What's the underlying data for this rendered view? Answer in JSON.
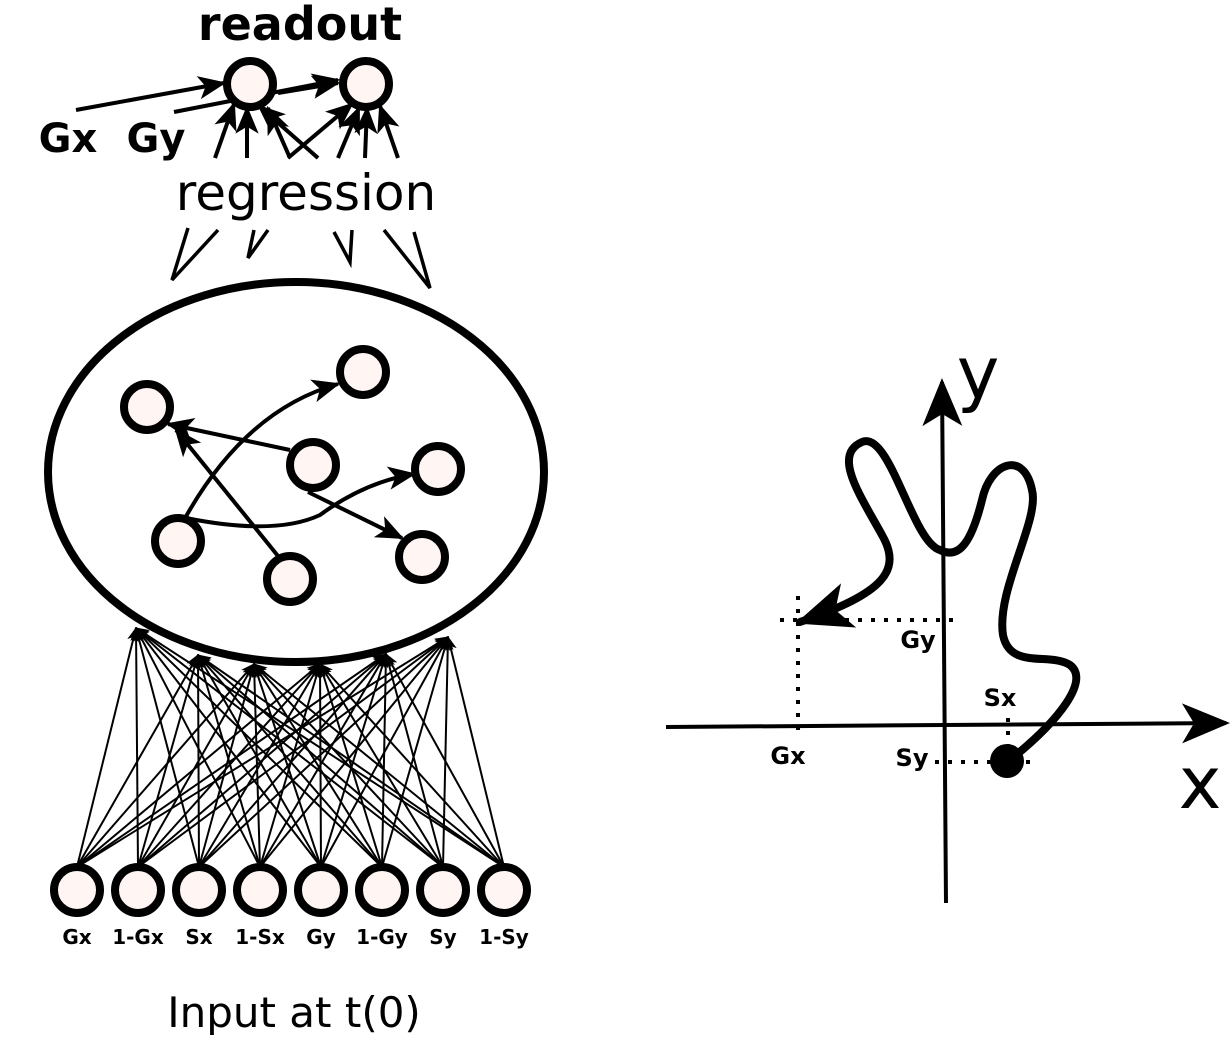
{
  "readout": {
    "title": "readout",
    "left_input_gx": "Gx",
    "left_input_gy": "Gy",
    "regression_label": "regression"
  },
  "network": {
    "input_labels": [
      "Gx",
      "1-Gx",
      "Sx",
      "1-Sx",
      "Gy",
      "1-Gy",
      "Sy",
      "1-Sy"
    ],
    "caption": "Input at t(0)"
  },
  "plot": {
    "axis_y_label": "y",
    "axis_x_label": "x",
    "marker_gx": "Gx",
    "marker_gy": "Gy",
    "marker_sx": "Sx",
    "marker_sy": "Sy"
  },
  "colors": {
    "node_fill": "#fff5f3",
    "stroke": "#000000"
  }
}
